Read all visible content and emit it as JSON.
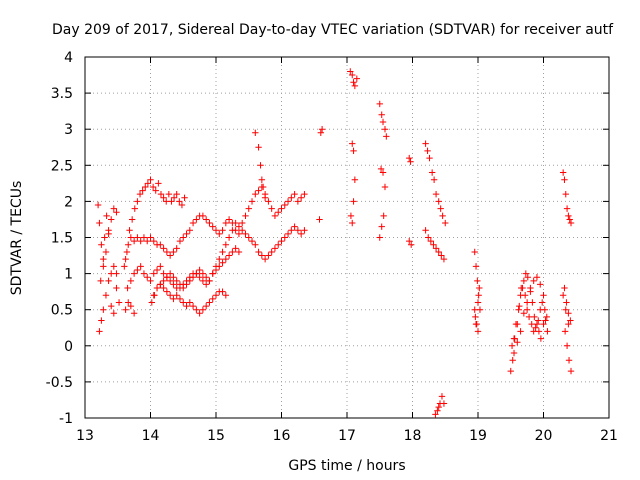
{
  "chart_data": {
    "type": "scatter",
    "title": "Day 209 of 2017, Sidereal Day-to-day VTEC variation (SDTVAR) for receiver autf",
    "xlabel": "GPS time / hours",
    "ylabel": "SDTVAR / TECUs",
    "xlim": [
      13,
      21
    ],
    "ylim": [
      -1,
      4
    ],
    "xticks": [
      "13",
      "14",
      "15",
      "16",
      "17",
      "18",
      "19",
      "20",
      "21"
    ],
    "yticks": [
      "-1",
      "-0.5",
      "0",
      "0.5",
      "1",
      "1.5",
      "2",
      "2.5",
      "3",
      "3.5",
      "4"
    ],
    "grid": true,
    "marker": "+",
    "marker_color": "#ff0000",
    "series": [
      {
        "name": "SDTVAR",
        "color": "#ff0000",
        "x": [
          13.2,
          13.22,
          13.25,
          13.28,
          13.3,
          13.33,
          13.36,
          13.4,
          13.44,
          13.48,
          13.22,
          13.25,
          13.28,
          13.32,
          13.36,
          13.4,
          13.44,
          13.48,
          13.52,
          13.24,
          13.28,
          13.32,
          13.36,
          13.4,
          13.44,
          13.48,
          13.6,
          13.64,
          13.68,
          13.72,
          13.76,
          13.8,
          13.84,
          13.88,
          13.92,
          13.96,
          14.0,
          14.04,
          14.08,
          14.12,
          14.16,
          14.2,
          14.24,
          14.28,
          14.32,
          14.36,
          14.4,
          14.44,
          14.48,
          14.52,
          13.62,
          13.66,
          13.7,
          13.75,
          13.8,
          13.85,
          13.9,
          13.95,
          14.0,
          14.05,
          14.1,
          14.15,
          14.2,
          14.25,
          14.3,
          14.35,
          14.4,
          14.45,
          14.5,
          14.55,
          14.6,
          14.65,
          14.7,
          14.75,
          14.8,
          14.85,
          14.9,
          14.95,
          15.0,
          15.05,
          15.1,
          15.15,
          15.2,
          15.25,
          15.3,
          15.35,
          15.4,
          15.45,
          15.5,
          15.55,
          15.6,
          15.65,
          15.7,
          15.75,
          15.8,
          15.85,
          15.9,
          15.95,
          16.0,
          16.05,
          16.1,
          16.15,
          16.2,
          16.25,
          16.3,
          16.35,
          13.65,
          13.7,
          13.75,
          13.8,
          13.85,
          13.9,
          13.95,
          14.0,
          14.05,
          14.1,
          14.15,
          14.2,
          14.25,
          14.3,
          14.35,
          14.4,
          14.45,
          14.5,
          14.55,
          14.6,
          14.65,
          14.7,
          14.75,
          14.8,
          14.85,
          14.9,
          14.95,
          15.0,
          15.05,
          15.1,
          15.15,
          15.2,
          15.25,
          15.3,
          15.35,
          15.4,
          15.45,
          15.5,
          15.55,
          15.6,
          15.65,
          15.7,
          15.75,
          15.8,
          15.85,
          15.9,
          15.95,
          16.0,
          16.05,
          16.1,
          16.15,
          16.2,
          16.25,
          16.3,
          16.35,
          13.62,
          13.66,
          13.7,
          13.75,
          14.02,
          14.06,
          14.1,
          14.15,
          14.2,
          14.25,
          14.3,
          14.35,
          14.4,
          14.45,
          14.5,
          14.55,
          14.6,
          14.65,
          14.7,
          14.75,
          14.8,
          14.85,
          14.9,
          14.95,
          15.0,
          15.05,
          15.1,
          15.15,
          15.2,
          15.25,
          15.3,
          15.35,
          14.05,
          14.1,
          14.15,
          14.2,
          14.25,
          14.3,
          14.35,
          14.4,
          14.45,
          14.5,
          14.55,
          14.6,
          14.65,
          14.7,
          14.75,
          14.8,
          14.85,
          14.9,
          14.95,
          15.0,
          15.05,
          15.1,
          15.15,
          15.6,
          15.65,
          15.68,
          15.7,
          15.72,
          15.75,
          16.58,
          16.6,
          16.62,
          17.05,
          17.08,
          17.1,
          17.12,
          17.15,
          17.08,
          17.1,
          17.12,
          17.06,
          17.08,
          17.1,
          17.5,
          17.53,
          17.55,
          17.58,
          17.6,
          17.52,
          17.55,
          17.58,
          17.5,
          17.53,
          17.56,
          17.95,
          17.97,
          17.95,
          17.98,
          18.2,
          18.23,
          18.26,
          18.3,
          18.33,
          18.36,
          18.4,
          18.43,
          18.46,
          18.5,
          18.2,
          18.24,
          18.28,
          18.32,
          18.36,
          18.4,
          18.44,
          18.48,
          18.35,
          18.38,
          18.4,
          18.42,
          18.45,
          18.48,
          18.95,
          18.97,
          18.99,
          19.01,
          19.03,
          18.96,
          18.98,
          19.0,
          19.02,
          18.95,
          18.97,
          19.0,
          19.5,
          19.53,
          19.56,
          19.6,
          19.63,
          19.66,
          19.7,
          19.73,
          19.76,
          19.8,
          19.83,
          19.86,
          19.9,
          19.93,
          19.96,
          20.0,
          20.03,
          20.06,
          19.52,
          19.55,
          19.58,
          19.62,
          19.65,
          19.68,
          19.72,
          19.75,
          19.78,
          19.82,
          19.85,
          19.88,
          19.92,
          19.95,
          19.98,
          20.02,
          20.05,
          19.55,
          19.6,
          19.65,
          19.7,
          19.75,
          19.8,
          19.85,
          19.9,
          19.95,
          20.0,
          20.3,
          20.32,
          20.34,
          20.36,
          20.38,
          20.4,
          20.42,
          20.32,
          20.35,
          20.38,
          20.41,
          20.33,
          20.36,
          20.39,
          20.42,
          20.3,
          20.34,
          20.38
        ],
        "y": [
          1.95,
          1.7,
          1.4,
          1.2,
          1.5,
          1.8,
          1.6,
          1.0,
          1.1,
          1.0,
          0.2,
          0.35,
          0.5,
          0.7,
          0.9,
          0.55,
          0.45,
          0.8,
          0.6,
          0.9,
          1.1,
          1.3,
          1.55,
          1.75,
          1.9,
          1.85,
          1.1,
          1.3,
          1.6,
          1.75,
          1.9,
          2.0,
          2.1,
          2.15,
          2.2,
          2.25,
          2.3,
          2.2,
          2.15,
          2.25,
          2.1,
          2.05,
          2.0,
          2.1,
          2.0,
          2.05,
          2.1,
          2.0,
          1.95,
          2.05,
          1.2,
          1.4,
          1.5,
          1.45,
          1.5,
          1.45,
          1.5,
          1.45,
          1.5,
          1.45,
          1.4,
          1.4,
          1.35,
          1.3,
          1.25,
          1.3,
          1.35,
          1.45,
          1.5,
          1.55,
          1.6,
          1.7,
          1.75,
          1.8,
          1.8,
          1.75,
          1.7,
          1.65,
          1.6,
          1.55,
          1.6,
          1.7,
          1.75,
          1.7,
          1.6,
          1.55,
          1.7,
          1.8,
          1.9,
          2.0,
          2.1,
          2.15,
          2.2,
          2.1,
          2.0,
          1.9,
          1.8,
          1.85,
          1.9,
          1.95,
          2.0,
          2.05,
          2.1,
          2.0,
          2.05,
          2.1,
          0.8,
          0.9,
          1.0,
          1.05,
          1.1,
          1.0,
          0.95,
          0.9,
          1.0,
          1.05,
          1.1,
          1.0,
          0.95,
          0.9,
          0.85,
          0.8,
          0.8,
          0.85,
          0.9,
          0.95,
          1.0,
          1.0,
          0.95,
          0.9,
          0.85,
          0.9,
          1.0,
          1.1,
          1.2,
          1.3,
          1.4,
          1.5,
          1.6,
          1.7,
          1.65,
          1.6,
          1.55,
          1.5,
          1.45,
          1.4,
          1.3,
          1.25,
          1.2,
          1.25,
          1.3,
          1.35,
          1.4,
          1.45,
          1.5,
          1.55,
          1.6,
          1.65,
          1.6,
          1.55,
          1.6,
          0.5,
          0.6,
          0.55,
          0.45,
          0.6,
          0.7,
          0.8,
          0.85,
          0.9,
          0.95,
          1.0,
          0.95,
          0.9,
          0.85,
          0.8,
          0.85,
          0.9,
          0.95,
          1.0,
          1.05,
          1.0,
          0.95,
          0.9,
          1.0,
          1.05,
          1.1,
          1.15,
          1.2,
          1.25,
          1.3,
          1.35,
          1.3,
          0.7,
          0.8,
          0.85,
          0.8,
          0.75,
          0.7,
          0.65,
          0.7,
          0.65,
          0.6,
          0.55,
          0.6,
          0.55,
          0.5,
          0.45,
          0.5,
          0.55,
          0.6,
          0.65,
          0.7,
          0.75,
          0.75,
          0.7,
          2.95,
          2.75,
          2.5,
          2.3,
          2.2,
          2.05,
          1.75,
          2.95,
          3.0,
          3.8,
          3.75,
          3.65,
          3.6,
          3.7,
          2.8,
          2.7,
          2.3,
          1.8,
          1.7,
          2.0,
          3.35,
          3.2,
          3.1,
          3.0,
          2.9,
          2.45,
          2.4,
          2.2,
          1.5,
          1.65,
          1.8,
          2.6,
          2.55,
          1.45,
          1.4,
          2.8,
          2.7,
          2.6,
          2.4,
          2.3,
          2.1,
          2.0,
          1.9,
          1.8,
          1.7,
          1.6,
          1.5,
          1.45,
          1.4,
          1.35,
          1.3,
          1.25,
          1.2,
          -0.95,
          -0.9,
          -0.85,
          -0.8,
          -0.7,
          -0.8,
          1.3,
          1.1,
          0.9,
          0.7,
          0.5,
          0.4,
          0.3,
          0.6,
          0.8,
          0.5,
          0.3,
          0.2,
          -0.35,
          -0.2,
          0.1,
          0.3,
          0.55,
          0.8,
          0.9,
          1.0,
          0.95,
          0.8,
          0.6,
          0.4,
          0.3,
          0.2,
          0.1,
          0.3,
          0.35,
          0.2,
          0.0,
          0.1,
          0.3,
          0.5,
          0.7,
          0.8,
          0.7,
          0.5,
          0.4,
          0.3,
          0.2,
          0.25,
          0.35,
          0.5,
          0.6,
          0.5,
          0.4,
          -0.1,
          0.05,
          0.2,
          0.45,
          0.6,
          0.75,
          0.9,
          0.95,
          0.85,
          0.7,
          2.4,
          2.3,
          2.1,
          1.9,
          1.8,
          1.75,
          1.7,
          0.8,
          0.6,
          0.45,
          0.35,
          0.2,
          0.0,
          -0.2,
          -0.35,
          0.7,
          0.5,
          0.3
        ]
      }
    ]
  }
}
